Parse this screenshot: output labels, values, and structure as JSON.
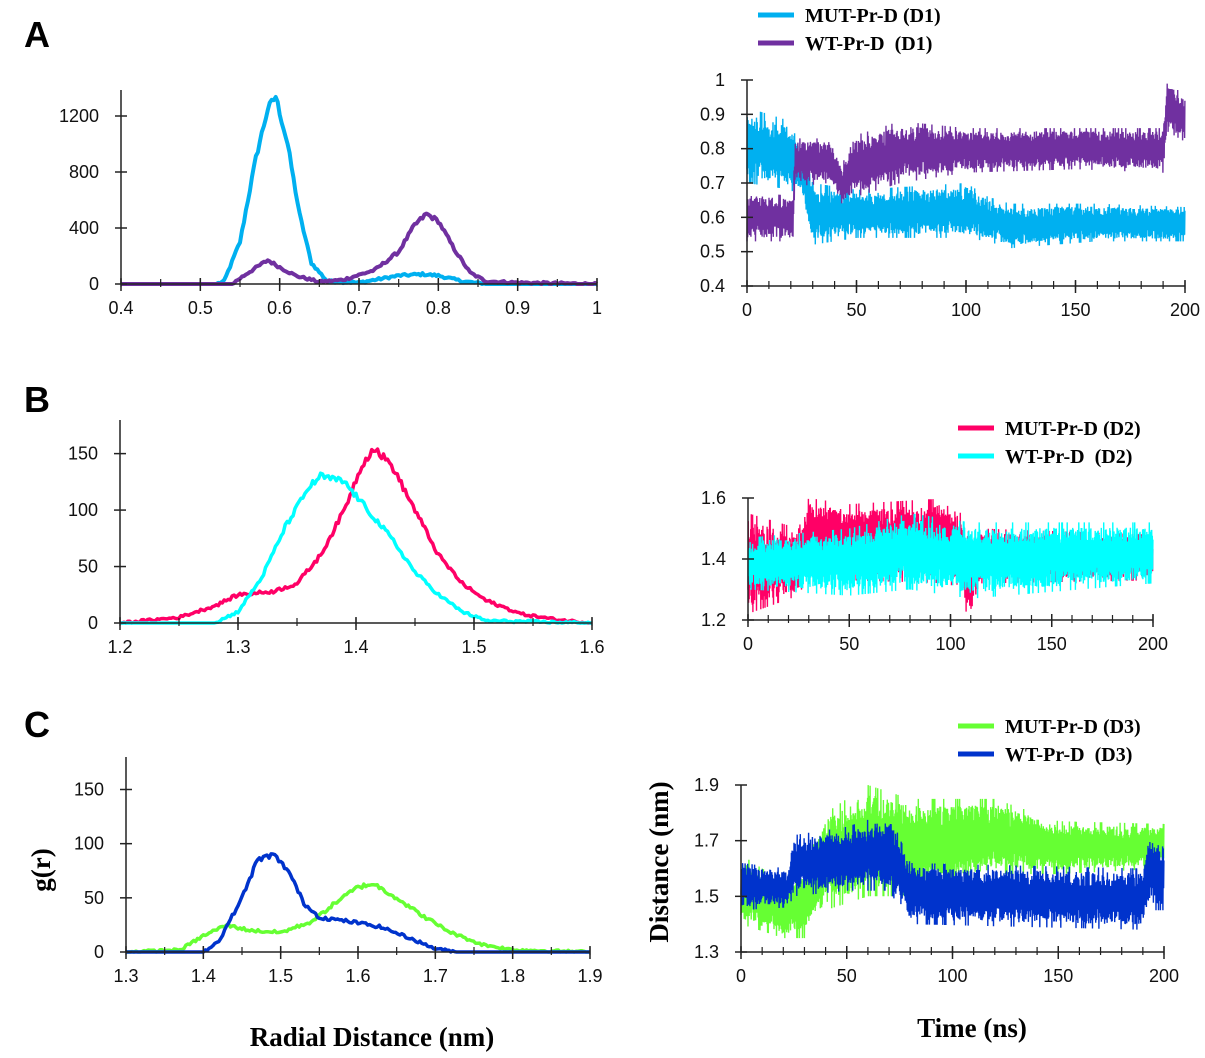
{
  "axis_labels": {
    "rdf_x": "Radial Distance (nm)",
    "rdf_y": "g(r)",
    "ts_x": "Time (ns)",
    "ts_y": "Distance (nm)"
  },
  "chart_data": [
    {
      "panel": "A",
      "type": "line",
      "role": "rdf",
      "xlim": [
        0.4,
        1
      ],
      "ylim": [
        0,
        1350
      ],
      "xticks": [
        0.4,
        0.5,
        0.6,
        0.7,
        0.8,
        0.9,
        1
      ],
      "yticks": [
        0,
        400,
        800,
        1200
      ],
      "series": [
        {
          "legend_ref": 0,
          "color": "#00b0f0",
          "points": [
            [
              0.4,
              0
            ],
            [
              0.52,
              0
            ],
            [
              0.53,
              20
            ],
            [
              0.55,
              300
            ],
            [
              0.57,
              900
            ],
            [
              0.585,
              1250
            ],
            [
              0.595,
              1340
            ],
            [
              0.61,
              1000
            ],
            [
              0.625,
              500
            ],
            [
              0.64,
              150
            ],
            [
              0.66,
              20
            ],
            [
              0.7,
              10
            ],
            [
              0.75,
              60
            ],
            [
              0.78,
              70
            ],
            [
              0.8,
              60
            ],
            [
              0.83,
              20
            ],
            [
              0.86,
              0
            ],
            [
              1,
              0
            ]
          ]
        },
        {
          "legend_ref": 1,
          "color": "#7030a0",
          "points": [
            [
              0.4,
              0
            ],
            [
              0.54,
              0
            ],
            [
              0.56,
              80
            ],
            [
              0.585,
              170
            ],
            [
              0.6,
              120
            ],
            [
              0.62,
              60
            ],
            [
              0.65,
              15
            ],
            [
              0.68,
              30
            ],
            [
              0.72,
              100
            ],
            [
              0.75,
              230
            ],
            [
              0.77,
              420
            ],
            [
              0.785,
              500
            ],
            [
              0.8,
              450
            ],
            [
              0.82,
              250
            ],
            [
              0.84,
              80
            ],
            [
              0.86,
              20
            ],
            [
              0.9,
              10
            ],
            [
              0.95,
              5
            ],
            [
              1,
              0
            ]
          ]
        }
      ]
    },
    {
      "panel": "A",
      "type": "line",
      "role": "timeseries",
      "xlim": [
        0,
        200
      ],
      "ylim": [
        0.4,
        1
      ],
      "xticks": [
        0,
        50,
        100,
        150,
        200
      ],
      "yticks": [
        0.4,
        0.5,
        0.6,
        0.7,
        0.8,
        0.9,
        1
      ],
      "legend": [
        "MUT-Pr-D (D1)",
        "WT-Pr-D  (D1)"
      ],
      "series": [
        {
          "name": "MUT-Pr-D (D1)",
          "color": "#00b0f0",
          "range_band": [
            [
              0,
              0.7,
              0.92
            ],
            [
              20,
              0.68,
              0.88
            ],
            [
              22,
              0.67,
              0.84
            ],
            [
              25,
              0.67,
              0.8
            ],
            [
              30,
              0.52,
              0.7
            ],
            [
              50,
              0.54,
              0.68
            ],
            [
              100,
              0.54,
              0.7
            ],
            [
              110,
              0.53,
              0.66
            ],
            [
              120,
              0.51,
              0.64
            ],
            [
              160,
              0.53,
              0.64
            ],
            [
              200,
              0.53,
              0.63
            ]
          ]
        },
        {
          "name": "WT-Pr-D  (D1)",
          "color": "#7030a0",
          "range_band": [
            [
              0,
              0.53,
              0.68
            ],
            [
              21,
              0.53,
              0.66
            ],
            [
              22,
              0.69,
              0.83
            ],
            [
              38,
              0.7,
              0.83
            ],
            [
              43,
              0.64,
              0.75
            ],
            [
              50,
              0.66,
              0.84
            ],
            [
              70,
              0.7,
              0.88
            ],
            [
              100,
              0.73,
              0.86
            ],
            [
              150,
              0.74,
              0.86
            ],
            [
              190,
              0.73,
              0.86
            ],
            [
              192,
              0.85,
              1.0
            ],
            [
              200,
              0.82,
              0.95
            ]
          ]
        }
      ]
    },
    {
      "panel": "B",
      "type": "line",
      "role": "rdf",
      "xlim": [
        1.2,
        1.6
      ],
      "ylim": [
        0,
        178
      ],
      "xticks": [
        1.2,
        1.3,
        1.4,
        1.5,
        1.6
      ],
      "yticks": [
        0,
        50,
        100,
        150
      ],
      "series": [
        {
          "legend_ref": 0,
          "color": "#ff0066",
          "points": [
            [
              1.2,
              0
            ],
            [
              1.25,
              5
            ],
            [
              1.28,
              15
            ],
            [
              1.3,
              25
            ],
            [
              1.33,
              28
            ],
            [
              1.35,
              35
            ],
            [
              1.37,
              60
            ],
            [
              1.39,
              100
            ],
            [
              1.405,
              140
            ],
            [
              1.415,
              155
            ],
            [
              1.43,
              140
            ],
            [
              1.45,
              100
            ],
            [
              1.47,
              60
            ],
            [
              1.49,
              35
            ],
            [
              1.51,
              20
            ],
            [
              1.54,
              8
            ],
            [
              1.57,
              3
            ],
            [
              1.6,
              0
            ]
          ]
        },
        {
          "legend_ref": 1,
          "color": "#00ffff",
          "points": [
            [
              1.2,
              0
            ],
            [
              1.28,
              0
            ],
            [
              1.3,
              10
            ],
            [
              1.32,
              40
            ],
            [
              1.34,
              85
            ],
            [
              1.36,
              120
            ],
            [
              1.37,
              130
            ],
            [
              1.39,
              125
            ],
            [
              1.41,
              100
            ],
            [
              1.43,
              75
            ],
            [
              1.45,
              45
            ],
            [
              1.47,
              25
            ],
            [
              1.49,
              10
            ],
            [
              1.51,
              2
            ],
            [
              1.6,
              0
            ]
          ]
        }
      ]
    },
    {
      "panel": "B",
      "type": "line",
      "role": "timeseries",
      "xlim": [
        0,
        200
      ],
      "ylim": [
        1.2,
        1.6
      ],
      "xticks": [
        0,
        50,
        100,
        150,
        200
      ],
      "yticks": [
        1.2,
        1.4,
        1.6
      ],
      "legend": [
        "MUT-Pr-D (D2)",
        "WT-Pr-D  (D2)"
      ],
      "series": [
        {
          "name": "MUT-Pr-D (D2)",
          "color": "#ff0066",
          "range_band": [
            [
              0,
              1.22,
              1.55
            ],
            [
              25,
              1.28,
              1.5
            ],
            [
              30,
              1.35,
              1.6
            ],
            [
              50,
              1.33,
              1.58
            ],
            [
              100,
              1.32,
              1.6
            ],
            [
              110,
              1.2,
              1.5
            ],
            [
              115,
              1.32,
              1.5
            ],
            [
              200,
              1.33,
              1.48
            ]
          ]
        },
        {
          "name": "WT-Pr-D  (D2)",
          "color": "#00ffff",
          "range_band": [
            [
              0,
              1.3,
              1.47
            ],
            [
              50,
              1.28,
              1.5
            ],
            [
              80,
              1.3,
              1.55
            ],
            [
              110,
              1.27,
              1.52
            ],
            [
              200,
              1.32,
              1.52
            ]
          ]
        }
      ]
    },
    {
      "panel": "C",
      "type": "line",
      "role": "rdf",
      "xlim": [
        1.3,
        1.9
      ],
      "ylim": [
        0,
        180
      ],
      "xticks": [
        1.3,
        1.4,
        1.5,
        1.6,
        1.7,
        1.8,
        1.9
      ],
      "yticks": [
        0,
        50,
        100,
        150
      ],
      "series": [
        {
          "legend_ref": 0,
          "color": "#66ff33",
          "points": [
            [
              1.3,
              0
            ],
            [
              1.37,
              2
            ],
            [
              1.4,
              15
            ],
            [
              1.43,
              25
            ],
            [
              1.46,
              20
            ],
            [
              1.5,
              18
            ],
            [
              1.54,
              28
            ],
            [
              1.57,
              45
            ],
            [
              1.6,
              60
            ],
            [
              1.62,
              63
            ],
            [
              1.65,
              50
            ],
            [
              1.68,
              35
            ],
            [
              1.72,
              18
            ],
            [
              1.76,
              7
            ],
            [
              1.8,
              2
            ],
            [
              1.9,
              0
            ]
          ]
        },
        {
          "legend_ref": 1,
          "color": "#0033cc",
          "points": [
            [
              1.3,
              0
            ],
            [
              1.4,
              0
            ],
            [
              1.42,
              10
            ],
            [
              1.45,
              50
            ],
            [
              1.47,
              85
            ],
            [
              1.49,
              90
            ],
            [
              1.51,
              75
            ],
            [
              1.53,
              45
            ],
            [
              1.55,
              32
            ],
            [
              1.6,
              27
            ],
            [
              1.63,
              23
            ],
            [
              1.67,
              12
            ],
            [
              1.7,
              3
            ],
            [
              1.73,
              0
            ],
            [
              1.9,
              0
            ]
          ]
        }
      ]
    },
    {
      "panel": "C",
      "type": "line",
      "role": "timeseries",
      "xlim": [
        0,
        200
      ],
      "ylim": [
        1.3,
        1.9
      ],
      "xticks": [
        0,
        50,
        100,
        150,
        200
      ],
      "yticks": [
        1.3,
        1.5,
        1.7,
        1.9
      ],
      "legend": [
        "MUT-Pr-D (D3)",
        "WT-Pr-D  (D3)"
      ],
      "series": [
        {
          "name": "MUT-Pr-D (D3)",
          "color": "#66ff33",
          "range_band": [
            [
              0,
              1.4,
              1.65
            ],
            [
              20,
              1.35,
              1.55
            ],
            [
              30,
              1.35,
              1.6
            ],
            [
              40,
              1.45,
              1.8
            ],
            [
              60,
              1.5,
              1.9
            ],
            [
              80,
              1.5,
              1.85
            ],
            [
              120,
              1.58,
              1.85
            ],
            [
              150,
              1.58,
              1.77
            ],
            [
              200,
              1.6,
              1.76
            ]
          ]
        },
        {
          "name": "WT-Pr-D  (D3)",
          "color": "#0033cc",
          "range_band": [
            [
              0,
              1.45,
              1.62
            ],
            [
              22,
              1.46,
              1.6
            ],
            [
              25,
              1.5,
              1.72
            ],
            [
              50,
              1.52,
              1.75
            ],
            [
              70,
              1.52,
              1.8
            ],
            [
              80,
              1.4,
              1.62
            ],
            [
              190,
              1.38,
              1.6
            ],
            [
              192,
              1.45,
              1.72
            ],
            [
              200,
              1.45,
              1.7
            ]
          ]
        }
      ]
    }
  ]
}
